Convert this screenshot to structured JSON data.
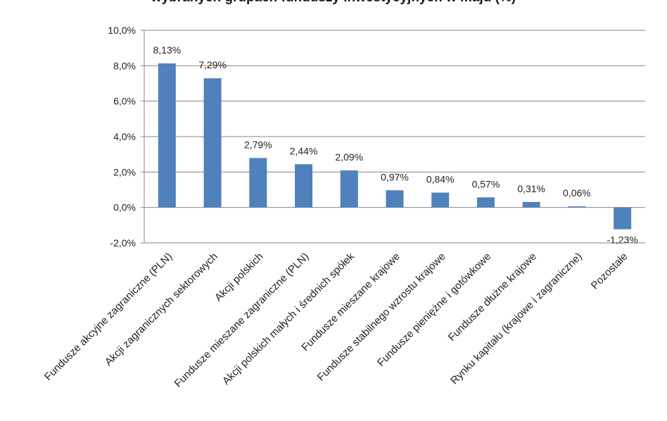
{
  "chart_data": {
    "type": "bar",
    "title": "wybranych grupach funduszy inwestycyjnych w maju (%)",
    "categories": [
      "Fundusze akcyjne zagraniczne (PLN)",
      "Akcji zagranicznych sektorowych",
      "Akcji polskich",
      "Fundusze mieszane zagraniczne (PLN)",
      "Akcji polskich małych i średnich spółek",
      "Fundusze mieszane krajowe",
      "Fundusze stabilnego wzrostu krajowe",
      "Fundusze pieniężne i gotówkowe",
      "Fundusze dłużne krajowe",
      "Rynku kapitału (krajowe i zagraniczne)",
      "Pozostałe"
    ],
    "values": [
      8.13,
      7.29,
      2.79,
      2.44,
      2.09,
      0.97,
      0.84,
      0.57,
      0.31,
      0.06,
      -1.23
    ],
    "value_labels": [
      "8,13%",
      "7,29%",
      "2,79%",
      "2,44%",
      "2,09%",
      "0,97%",
      "0,84%",
      "0,57%",
      "0,31%",
      "0,06%",
      "-1,23%"
    ],
    "y_ticks": [
      10,
      8,
      6,
      4,
      2,
      0,
      -2
    ],
    "y_tick_labels": [
      "10,0%",
      "8,0%",
      "6,0%",
      "4,0%",
      "2,0%",
      "0,0%",
      "-2,0%"
    ],
    "ylim": [
      -2,
      10
    ],
    "grid": true,
    "legend": "none",
    "bar_color": "#4f81bd",
    "grid_color": "#868686"
  }
}
